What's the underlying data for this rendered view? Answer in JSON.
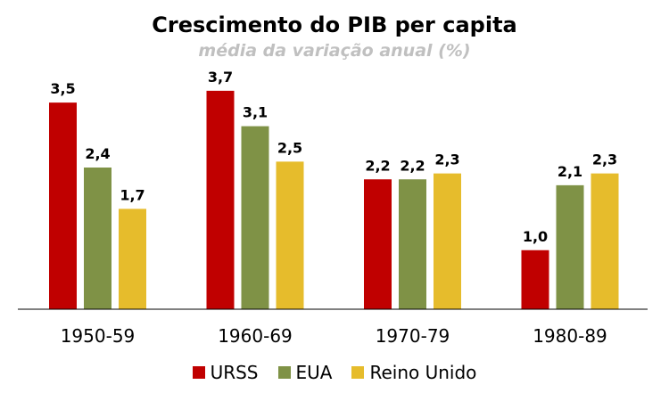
{
  "chart_data": {
    "type": "bar",
    "title": "Crescimento do PIB per capita",
    "subtitle": "média da variação anual (%)",
    "categories": [
      "1950-59",
      "1960-69",
      "1970-79",
      "1980-89"
    ],
    "series": [
      {
        "name": "URSS",
        "color": "#c00000",
        "values": [
          3.5,
          3.7,
          2.2,
          1.0
        ],
        "labels": [
          "3,5",
          "3,7",
          "2,2",
          "1,0"
        ]
      },
      {
        "name": "EUA",
        "color": "#7f9246",
        "values": [
          2.4,
          3.1,
          2.2,
          2.1
        ],
        "labels": [
          "2,4",
          "3,1",
          "2,2",
          "2,1"
        ]
      },
      {
        "name": "Reino Unido",
        "color": "#e6bc2c",
        "values": [
          1.7,
          2.5,
          2.3,
          2.3
        ],
        "labels": [
          "1,7",
          "2,5",
          "2,3",
          "2,3"
        ]
      }
    ],
    "ylim": [
      0,
      4.0
    ],
    "grid": false,
    "legend": "bottom"
  }
}
